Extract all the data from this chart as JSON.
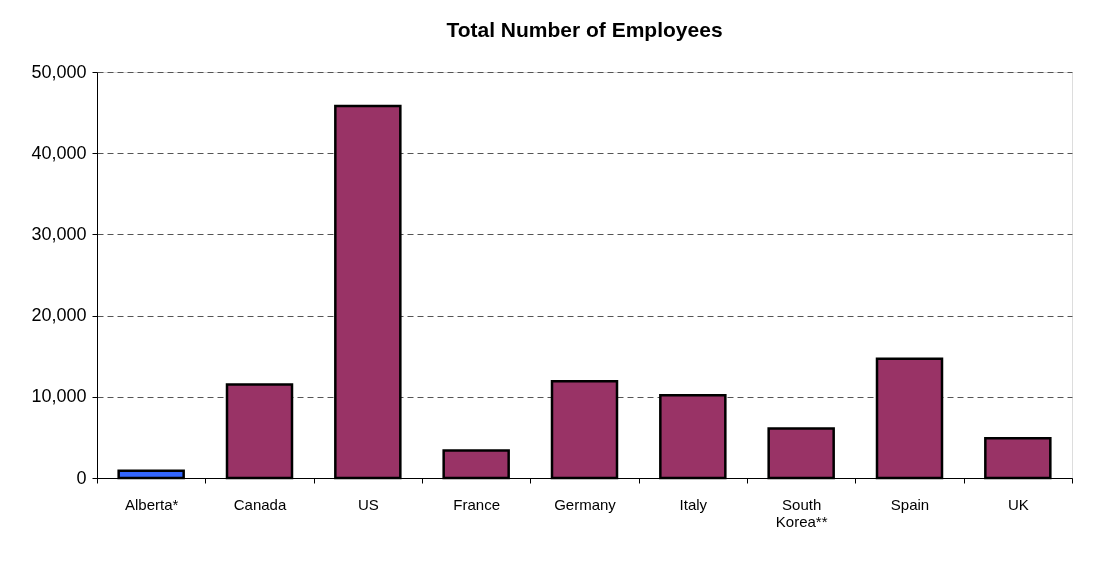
{
  "chart_data": {
    "type": "bar",
    "title": "Total Number of Employees",
    "categories": [
      "Alberta*",
      "Canada",
      "US",
      "France",
      "Germany",
      "Italy",
      "South Korea**",
      "Spain",
      "UK"
    ],
    "values": [
      900,
      11500,
      45800,
      3400,
      11900,
      10200,
      6100,
      14700,
      4900
    ],
    "colors": [
      "#3366ff",
      "#993366",
      "#993366",
      "#993366",
      "#993366",
      "#993366",
      "#993366",
      "#993366",
      "#993366"
    ],
    "ylim": [
      0,
      50000
    ],
    "yticks": [
      0,
      {
        "value": 10000,
        "label": "10,000"
      },
      {
        "value": 20000,
        "label": "20,000"
      },
      {
        "value": 30000,
        "label": "30,000"
      },
      {
        "value": 40000,
        "label": "40,000"
      },
      {
        "value": 50000,
        "label": "50,000"
      }
    ],
    "grid": "y"
  }
}
